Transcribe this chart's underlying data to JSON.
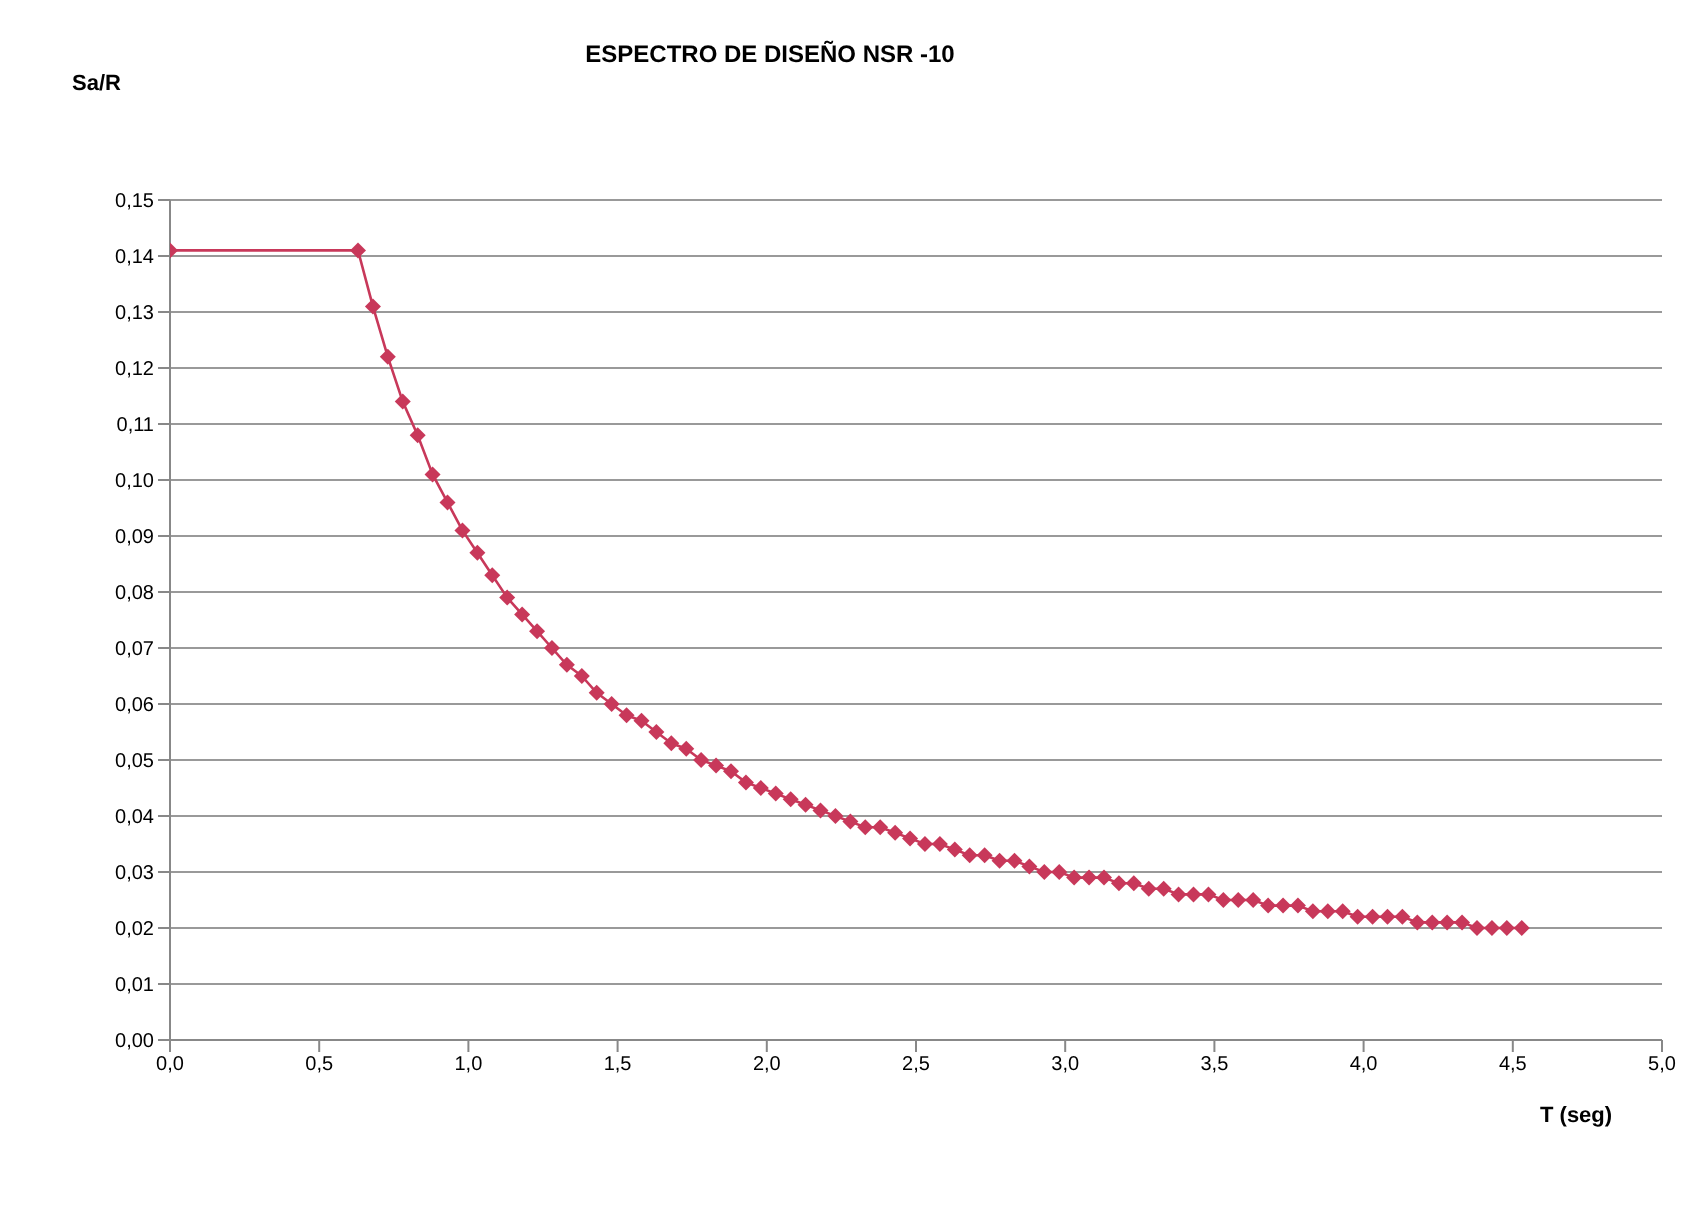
{
  "chart_data": {
    "type": "line",
    "title": "ESPECTRO DE DISEÑO NSR -10",
    "xlabel": "T (seg)",
    "ylabel": "Sa/R",
    "series": [
      {
        "color": "#c8385a",
        "x": [
          0,
          0.63,
          0.68,
          0.73,
          0.78,
          0.83,
          0.88,
          0.93,
          0.98,
          1.03,
          1.08,
          1.13,
          1.18,
          1.23,
          1.28,
          1.33,
          1.38,
          1.43,
          1.48,
          1.53,
          1.58,
          1.63,
          1.68,
          1.73,
          1.78,
          1.83,
          1.88,
          1.93,
          1.98,
          2.03,
          2.08,
          2.13,
          2.18,
          2.23,
          2.28,
          2.33,
          2.38,
          2.43,
          2.48,
          2.53,
          2.58,
          2.63,
          2.68,
          2.73,
          2.78,
          2.83,
          2.88,
          2.93,
          2.98,
          3.03,
          3.08,
          3.13,
          3.18,
          3.23,
          3.28,
          3.33,
          3.38,
          3.43,
          3.48,
          3.53,
          3.58,
          3.63,
          3.68,
          3.73,
          3.78,
          3.83,
          3.88,
          3.93,
          3.98,
          4.03,
          4.08,
          4.13,
          4.18,
          4.23,
          4.28,
          4.33,
          4.38,
          4.43,
          4.48,
          4.53
        ],
        "values": [
          0.141,
          0.141,
          0.131,
          0.122,
          0.114,
          0.108,
          0.101,
          0.096,
          0.091,
          0.087,
          0.083,
          0.079,
          0.076,
          0.073,
          0.07,
          0.067,
          0.065,
          0.062,
          0.06,
          0.058,
          0.057,
          0.055,
          0.053,
          0.052,
          0.05,
          0.049,
          0.048,
          0.046,
          0.045,
          0.044,
          0.043,
          0.042,
          0.041,
          0.04,
          0.039,
          0.038,
          0.038,
          0.037,
          0.036,
          0.035,
          0.035,
          0.034,
          0.033,
          0.033,
          0.032,
          0.032,
          0.031,
          0.03,
          0.03,
          0.029,
          0.029,
          0.029,
          0.028,
          0.028,
          0.027,
          0.027,
          0.026,
          0.026,
          0.026,
          0.025,
          0.025,
          0.025,
          0.024,
          0.024,
          0.024,
          0.023,
          0.023,
          0.023,
          0.022,
          0.022,
          0.022,
          0.022,
          0.021,
          0.021,
          0.021,
          0.021,
          0.02,
          0.02,
          0.02,
          0.02
        ]
      }
    ],
    "xlim": [
      0,
      5
    ],
    "xticks": [
      {
        "value": 0,
        "label": "0,0"
      },
      {
        "value": 0.5,
        "label": "0,5"
      },
      {
        "value": 1,
        "label": "1,0"
      },
      {
        "value": 1.5,
        "label": "1,5"
      },
      {
        "value": 2,
        "label": "2,0"
      },
      {
        "value": 2.5,
        "label": "2,5"
      },
      {
        "value": 3,
        "label": "3,0"
      },
      {
        "value": 3.5,
        "label": "3,5"
      },
      {
        "value": 4,
        "label": "4,0"
      },
      {
        "value": 4.5,
        "label": "4,5"
      },
      {
        "value": 5,
        "label": "5,0"
      }
    ],
    "ylim": [
      0,
      0.15
    ],
    "yticks": [
      {
        "value": 0,
        "label": "0,00"
      },
      {
        "value": 0.01,
        "label": "0,01"
      },
      {
        "value": 0.02,
        "label": "0,02"
      },
      {
        "value": 0.03,
        "label": "0,03"
      },
      {
        "value": 0.04,
        "label": "0,04"
      },
      {
        "value": 0.05,
        "label": "0,05"
      },
      {
        "value": 0.06,
        "label": "0,06"
      },
      {
        "value": 0.07,
        "label": "0,07"
      },
      {
        "value": 0.08,
        "label": "0,08"
      },
      {
        "value": 0.09,
        "label": "0,09"
      },
      {
        "value": 0.1,
        "label": "0,10"
      },
      {
        "value": 0.11,
        "label": "0,11"
      },
      {
        "value": 0.12,
        "label": "0,12"
      },
      {
        "value": 0.13,
        "label": "0,13"
      },
      {
        "value": 0.14,
        "label": "0,14"
      },
      {
        "value": 0.15,
        "label": "0,15"
      }
    ],
    "grid": "y",
    "legend": false,
    "marker": "diamond",
    "line_style": "solid"
  }
}
